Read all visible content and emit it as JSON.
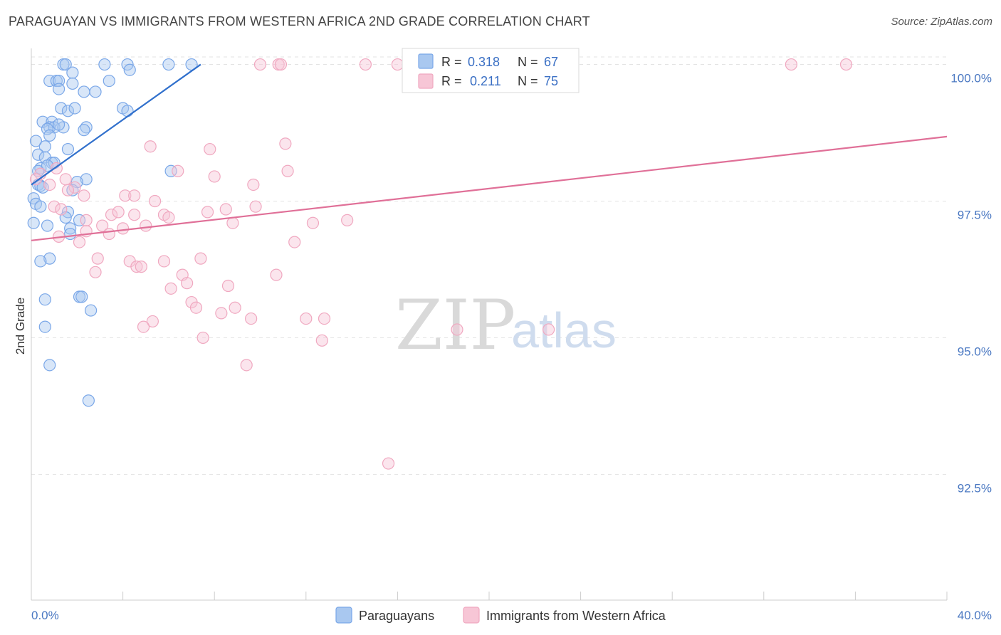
{
  "title": "PARAGUAYAN VS IMMIGRANTS FROM WESTERN AFRICA 2ND GRADE CORRELATION CHART",
  "source": "Source: ZipAtlas.com",
  "watermark": {
    "zip": "ZIP",
    "atlas": "atlas"
  },
  "chart_data": {
    "type": "scatter",
    "xlabel": "",
    "ylabel": "2nd Grade",
    "xlim": [
      0,
      40
    ],
    "ylim": [
      90.2,
      100.45
    ],
    "x_tick_labels": {
      "min": "0.0%",
      "max": "40.0%"
    },
    "y_ticks": [
      {
        "value": 100.0,
        "label": "100.0%"
      },
      {
        "value": 97.5,
        "label": "97.5%"
      },
      {
        "value": 95.0,
        "label": "95.0%"
      },
      {
        "value": 92.5,
        "label": "92.5%"
      }
    ],
    "legend_top": [
      {
        "r_label": "R =",
        "r_value": "0.318",
        "n_label": "N =",
        "n_value": "67"
      },
      {
        "r_label": "R =",
        "r_value": "0.211",
        "n_label": "N =",
        "n_value": "75"
      }
    ],
    "series": [
      {
        "name": "Paraguayans",
        "color": "#7aa7e8",
        "fill": "#a9c8f0",
        "line_color": "#2f6fcc",
        "trend": {
          "x0": 0.0,
          "y0": 97.8,
          "x1": 7.4,
          "y1": 100.0
        },
        "points": [
          [
            1.4,
            100.0
          ],
          [
            1.5,
            100.0
          ],
          [
            3.2,
            100.0
          ],
          [
            4.2,
            100.0
          ],
          [
            4.3,
            99.9
          ],
          [
            6.0,
            100.0
          ],
          [
            7.0,
            100.0
          ],
          [
            1.8,
            99.85
          ],
          [
            0.8,
            99.7
          ],
          [
            1.1,
            99.7
          ],
          [
            1.2,
            99.7
          ],
          [
            1.8,
            99.65
          ],
          [
            3.4,
            99.7
          ],
          [
            1.2,
            99.55
          ],
          [
            2.3,
            99.5
          ],
          [
            2.8,
            99.5
          ],
          [
            1.3,
            99.2
          ],
          [
            1.6,
            99.15
          ],
          [
            1.9,
            99.2
          ],
          [
            4.0,
            99.2
          ],
          [
            4.2,
            99.15
          ],
          [
            0.5,
            98.95
          ],
          [
            0.9,
            98.95
          ],
          [
            0.8,
            98.85
          ],
          [
            1.0,
            98.85
          ],
          [
            1.4,
            98.85
          ],
          [
            0.7,
            98.82
          ],
          [
            0.8,
            98.7
          ],
          [
            2.4,
            98.85
          ],
          [
            2.3,
            98.8
          ],
          [
            0.2,
            98.6
          ],
          [
            0.6,
            98.5
          ],
          [
            1.6,
            98.45
          ],
          [
            0.3,
            98.35
          ],
          [
            0.6,
            98.3
          ],
          [
            0.9,
            98.2
          ],
          [
            1.0,
            98.2
          ],
          [
            0.4,
            98.1
          ],
          [
            0.3,
            98.05
          ],
          [
            6.1,
            98.05
          ],
          [
            2.4,
            97.9
          ],
          [
            2.0,
            97.85
          ],
          [
            0.3,
            97.8
          ],
          [
            0.4,
            97.78
          ],
          [
            0.5,
            97.75
          ],
          [
            1.8,
            97.7
          ],
          [
            0.1,
            97.55
          ],
          [
            0.2,
            97.45
          ],
          [
            0.4,
            97.4
          ],
          [
            1.6,
            97.3
          ],
          [
            1.5,
            97.2
          ],
          [
            2.1,
            97.15
          ],
          [
            0.1,
            97.1
          ],
          [
            0.7,
            97.05
          ],
          [
            1.7,
            97.0
          ],
          [
            1.7,
            96.9
          ],
          [
            0.8,
            96.45
          ],
          [
            0.4,
            96.4
          ],
          [
            2.1,
            95.75
          ],
          [
            2.2,
            95.75
          ],
          [
            0.6,
            95.7
          ],
          [
            2.6,
            95.5
          ],
          [
            0.6,
            95.2
          ],
          [
            0.8,
            94.5
          ],
          [
            2.5,
            93.85
          ],
          [
            0.7,
            98.15
          ],
          [
            1.2,
            98.9
          ]
        ]
      },
      {
        "name": "Immigrants from Western Africa",
        "color": "#f0a8c0",
        "fill": "#f7c6d6",
        "line_color": "#e07098",
        "trend": {
          "x0": 0.0,
          "y0": 96.78,
          "x1": 40.0,
          "y1": 98.68
        },
        "points": [
          [
            10.0,
            100.0
          ],
          [
            10.8,
            100.0
          ],
          [
            10.9,
            100.0
          ],
          [
            14.6,
            100.0
          ],
          [
            16.0,
            100.0
          ],
          [
            16.6,
            100.0
          ],
          [
            33.2,
            100.0
          ],
          [
            35.6,
            100.0
          ],
          [
            5.2,
            98.5
          ],
          [
            11.1,
            98.55
          ],
          [
            7.8,
            98.45
          ],
          [
            6.4,
            98.05
          ],
          [
            11.2,
            98.05
          ],
          [
            8.0,
            97.95
          ],
          [
            0.4,
            98.0
          ],
          [
            1.5,
            97.9
          ],
          [
            9.7,
            97.8
          ],
          [
            1.9,
            97.75
          ],
          [
            0.8,
            97.8
          ],
          [
            1.6,
            97.7
          ],
          [
            2.3,
            97.6
          ],
          [
            4.1,
            97.6
          ],
          [
            4.5,
            97.6
          ],
          [
            5.4,
            97.5
          ],
          [
            1.0,
            97.4
          ],
          [
            9.8,
            97.4
          ],
          [
            1.3,
            97.35
          ],
          [
            7.7,
            97.3
          ],
          [
            8.5,
            97.35
          ],
          [
            3.5,
            97.25
          ],
          [
            4.5,
            97.25
          ],
          [
            5.8,
            97.25
          ],
          [
            6.0,
            97.2
          ],
          [
            8.8,
            97.1
          ],
          [
            12.3,
            97.1
          ],
          [
            13.8,
            97.15
          ],
          [
            3.1,
            97.05
          ],
          [
            4.0,
            97.0
          ],
          [
            5.0,
            97.05
          ],
          [
            2.4,
            96.95
          ],
          [
            3.4,
            96.9
          ],
          [
            1.2,
            96.85
          ],
          [
            2.1,
            96.75
          ],
          [
            11.5,
            96.75
          ],
          [
            2.9,
            96.45
          ],
          [
            4.3,
            96.4
          ],
          [
            5.8,
            96.4
          ],
          [
            7.4,
            96.45
          ],
          [
            4.6,
            96.3
          ],
          [
            4.8,
            96.3
          ],
          [
            2.8,
            96.2
          ],
          [
            6.6,
            96.15
          ],
          [
            10.7,
            96.15
          ],
          [
            6.8,
            96.0
          ],
          [
            8.6,
            95.95
          ],
          [
            6.1,
            95.9
          ],
          [
            7.0,
            95.65
          ],
          [
            7.2,
            95.55
          ],
          [
            8.9,
            95.55
          ],
          [
            8.3,
            95.45
          ],
          [
            9.6,
            95.35
          ],
          [
            12.0,
            95.35
          ],
          [
            12.8,
            95.35
          ],
          [
            5.3,
            95.3
          ],
          [
            4.9,
            95.2
          ],
          [
            18.6,
            95.15
          ],
          [
            22.6,
            95.15
          ],
          [
            7.5,
            95.0
          ],
          [
            12.7,
            94.95
          ],
          [
            9.4,
            94.5
          ],
          [
            15.6,
            92.7
          ],
          [
            2.4,
            97.15
          ],
          [
            3.8,
            97.3
          ],
          [
            1.1,
            98.1
          ],
          [
            0.2,
            97.9
          ]
        ]
      }
    ]
  }
}
